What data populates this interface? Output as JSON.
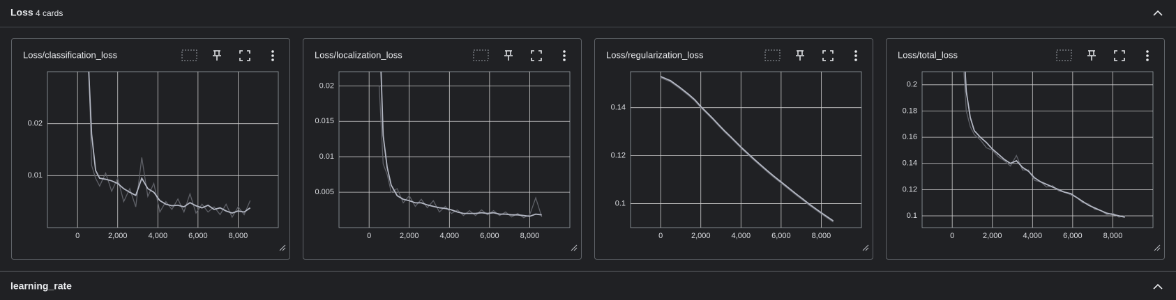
{
  "header": {
    "title": "Loss",
    "count": "4 cards"
  },
  "next_section": {
    "title": "learning_rate"
  },
  "chart_data": [
    {
      "type": "line",
      "title": "Loss/classification_loss",
      "x": [
        500,
        700,
        900,
        1100,
        1400,
        1700,
        2000,
        2300,
        2600,
        2900,
        3200,
        3500,
        3800,
        4100,
        4400,
        4700,
        5000,
        5300,
        5600,
        5900,
        6200,
        6500,
        6800,
        7100,
        7400,
        7700,
        8000,
        8300,
        8600
      ],
      "series": [
        {
          "color": "#5f6168",
          "values": [
            0.04,
            0.012,
            0.0095,
            0.008,
            0.0105,
            0.007,
            0.0095,
            0.005,
            0.0075,
            0.004,
            0.0135,
            0.006,
            0.0085,
            0.003,
            0.005,
            0.0035,
            0.0055,
            0.003,
            0.0065,
            0.0028,
            0.0045,
            0.003,
            0.004,
            0.0025,
            0.0045,
            0.002,
            0.004,
            0.0025,
            0.0052
          ]
        },
        {
          "color": "#b4b8c4",
          "values": [
            0.035,
            0.018,
            0.011,
            0.0095,
            0.0093,
            0.009,
            0.0085,
            0.0075,
            0.0068,
            0.0062,
            0.0095,
            0.0075,
            0.0068,
            0.0052,
            0.0045,
            0.0042,
            0.0043,
            0.004,
            0.0048,
            0.0042,
            0.0038,
            0.0043,
            0.0035,
            0.0038,
            0.0032,
            0.0028,
            0.0032,
            0.003,
            0.0038
          ]
        }
      ],
      "xlim": [
        -1500,
        10000
      ],
      "ylim": [
        0,
        0.03
      ],
      "xticks": [
        0,
        {
          "value": 2000,
          "label": "2,000"
        },
        {
          "value": 4000,
          "label": "4,000"
        },
        {
          "value": 6000,
          "label": "6,000"
        },
        {
          "value": 8000,
          "label": "8,000"
        }
      ],
      "yticks": [
        0.01,
        0.02
      ],
      "grid": true
    },
    {
      "type": "line",
      "title": "Loss/localization_loss",
      "x": [
        500,
        700,
        900,
        1100,
        1400,
        1700,
        2000,
        2300,
        2600,
        2900,
        3200,
        3500,
        3800,
        4100,
        4400,
        4700,
        5000,
        5300,
        5600,
        5900,
        6200,
        6500,
        6800,
        7100,
        7400,
        7700,
        8000,
        8300,
        8600
      ],
      "series": [
        {
          "color": "#5f6168",
          "values": [
            0.02,
            0.009,
            0.0075,
            0.005,
            0.0055,
            0.0035,
            0.0045,
            0.003,
            0.004,
            0.0028,
            0.0038,
            0.0022,
            0.003,
            0.002,
            0.0025,
            0.0017,
            0.0024,
            0.0017,
            0.0025,
            0.0018,
            0.0024,
            0.0017,
            0.0022,
            0.0015,
            0.002,
            0.0014,
            0.0018,
            0.0042,
            0.0015
          ]
        },
        {
          "color": "#b4b8c4",
          "values": [
            0.03,
            0.013,
            0.0085,
            0.006,
            0.0045,
            0.004,
            0.0038,
            0.0035,
            0.0035,
            0.0032,
            0.003,
            0.0028,
            0.0027,
            0.0025,
            0.0022,
            0.002,
            0.002,
            0.002,
            0.0021,
            0.002,
            0.0021,
            0.0019,
            0.0019,
            0.0018,
            0.0018,
            0.0017,
            0.0016,
            0.0019,
            0.0018
          ]
        }
      ],
      "xlim": [
        -1500,
        10000
      ],
      "ylim": [
        0,
        0.022
      ],
      "xticks": [
        0,
        {
          "value": 2000,
          "label": "2,000"
        },
        {
          "value": 4000,
          "label": "4,000"
        },
        {
          "value": 6000,
          "label": "6,000"
        },
        {
          "value": 8000,
          "label": "8,000"
        }
      ],
      "yticks": [
        0.005,
        0.01,
        0.015,
        0.02
      ],
      "grid": true
    },
    {
      "type": "line",
      "title": "Loss/regularization_loss",
      "x": [
        0,
        500,
        700,
        900,
        1100,
        1400,
        1700,
        2000,
        2300,
        2600,
        2900,
        3200,
        3500,
        3800,
        4100,
        4400,
        4700,
        5000,
        5300,
        5600,
        5900,
        6200,
        6500,
        6800,
        7100,
        7400,
        7700,
        8000,
        8300,
        8600
      ],
      "series": [
        {
          "color": "#5f6168",
          "values": [
            0.1525,
            0.1507,
            0.1495,
            0.1483,
            0.147,
            0.145,
            0.1428,
            0.14,
            0.1375,
            0.135,
            0.1323,
            0.1297,
            0.1273,
            0.1248,
            0.1223,
            0.12,
            0.1177,
            0.1155,
            0.1133,
            0.1112,
            0.1092,
            0.1072,
            0.1052,
            0.1032,
            0.1013,
            0.0993,
            0.0975,
            0.0957,
            0.094,
            0.0923
          ]
        },
        {
          "color": "#b4b8c4",
          "values": [
            0.153,
            0.1512,
            0.15,
            0.1488,
            0.1475,
            0.1455,
            0.1433,
            0.1405,
            0.138,
            0.1355,
            0.1328,
            0.1302,
            0.1278,
            0.1253,
            0.1228,
            0.1205,
            0.1182,
            0.116,
            0.1138,
            0.1117,
            0.1097,
            0.1077,
            0.1057,
            0.1037,
            0.1018,
            0.0998,
            0.098,
            0.0962,
            0.0945,
            0.0928
          ]
        }
      ],
      "xlim": [
        -1500,
        10000
      ],
      "ylim": [
        0.09,
        0.155
      ],
      "xticks": [
        0,
        {
          "value": 2000,
          "label": "2,000"
        },
        {
          "value": 4000,
          "label": "4,000"
        },
        {
          "value": 6000,
          "label": "6,000"
        },
        {
          "value": 8000,
          "label": "8,000"
        }
      ],
      "yticks": [
        0.1,
        0.12,
        0.14
      ],
      "grid": true
    },
    {
      "type": "line",
      "title": "Loss/total_loss",
      "x": [
        500,
        700,
        900,
        1100,
        1400,
        1700,
        2000,
        2300,
        2600,
        2900,
        3200,
        3500,
        3800,
        4100,
        4400,
        4700,
        5000,
        5300,
        5600,
        5900,
        6200,
        6500,
        6800,
        7100,
        7400,
        7700,
        8000,
        8300,
        8600
      ],
      "series": [
        {
          "color": "#5f6168",
          "values": [
            0.23,
            0.18,
            0.168,
            0.162,
            0.158,
            0.152,
            0.15,
            0.145,
            0.142,
            0.138,
            0.146,
            0.135,
            0.135,
            0.127,
            0.126,
            0.122,
            0.123,
            0.119,
            0.118,
            0.116,
            0.114,
            0.11,
            0.109,
            0.105,
            0.104,
            0.101,
            0.102,
            0.099,
            0.1
          ]
        },
        {
          "color": "#b4b8c4",
          "values": [
            0.25,
            0.195,
            0.175,
            0.165,
            0.16,
            0.156,
            0.151,
            0.147,
            0.143,
            0.14,
            0.142,
            0.137,
            0.134,
            0.129,
            0.126,
            0.124,
            0.122,
            0.12,
            0.118,
            0.117,
            0.114,
            0.111,
            0.108,
            0.106,
            0.104,
            0.102,
            0.101,
            0.1,
            0.099
          ]
        }
      ],
      "xlim": [
        -1500,
        10000
      ],
      "ylim": [
        0.091,
        0.21
      ],
      "xticks": [
        0,
        {
          "value": 2000,
          "label": "2,000"
        },
        {
          "value": 4000,
          "label": "4,000"
        },
        {
          "value": 6000,
          "label": "6,000"
        },
        {
          "value": 8000,
          "label": "8,000"
        }
      ],
      "yticks": [
        0.1,
        0.12,
        0.14,
        0.16,
        0.18,
        0.2
      ],
      "grid": true
    }
  ]
}
